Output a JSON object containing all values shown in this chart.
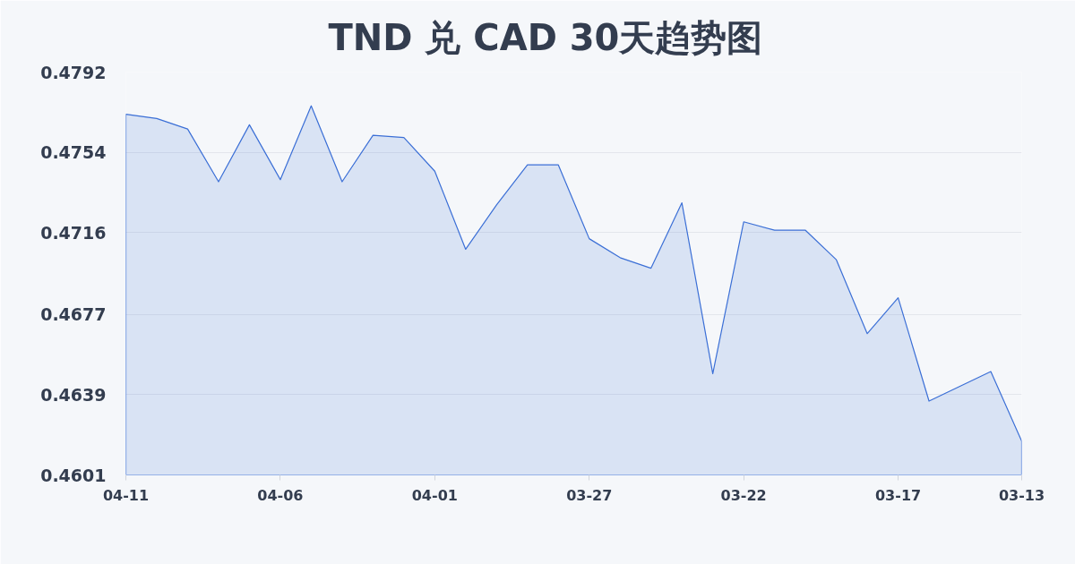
{
  "chart_data": {
    "type": "area",
    "title": "TND 兑 CAD 30天趋势图",
    "categories": [
      "04-11",
      null,
      null,
      null,
      null,
      "04-06",
      null,
      null,
      null,
      null,
      "04-01",
      null,
      null,
      null,
      null,
      "03-27",
      null,
      null,
      null,
      null,
      "03-22",
      null,
      null,
      null,
      null,
      "03-17",
      null,
      null,
      null,
      "03-13"
    ],
    "series": [
      {
        "color": "#3b6fd6",
        "values": [
          0.4772,
          0.477,
          0.4765,
          0.474,
          0.4767,
          0.4741,
          0.4776,
          0.474,
          0.4762,
          0.4761,
          0.4745,
          0.4708,
          0.4729,
          0.4748,
          0.4748,
          0.4713,
          0.4704,
          0.4699,
          0.473,
          0.4649,
          0.4721,
          0.4717,
          0.4717,
          0.4703,
          0.4668,
          0.4685,
          0.4636,
          0.4643,
          0.465,
          0.4617
        ]
      }
    ],
    "ylim": [
      0.4601,
      0.4792
    ],
    "yticks": [
      0.4601,
      0.4639,
      0.4677,
      0.4716,
      0.4754,
      0.4792
    ],
    "grid": "y"
  }
}
